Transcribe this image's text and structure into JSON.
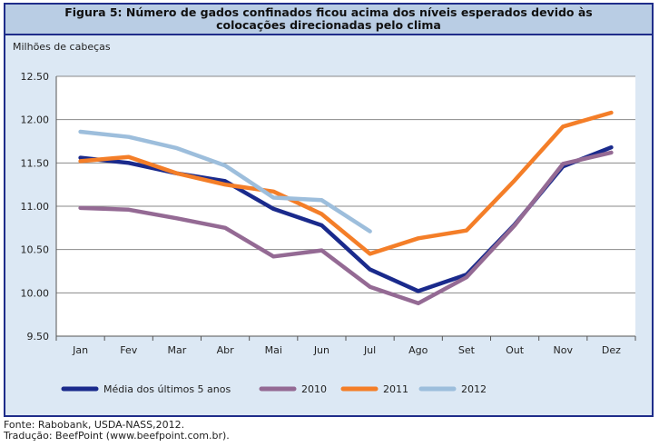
{
  "figure": {
    "title_line1": "Figura 5: Número de gados confinados ficou acima dos níveis esperados devido às",
    "title_line2": "colocações direcionadas pelo clima",
    "unit_label": "Milhões de cabeças"
  },
  "footer": {
    "source": "Fonte: Rabobank, USDA-NASS,2012.",
    "translation": "Tradução: BeefPoint (www.beefpoint.com.br)."
  },
  "chart_data": {
    "type": "line",
    "title": "Figura 5: Número de gados confinados ficou acima dos níveis esperados devido às colocações direcionadas pelo clima",
    "ylabel": "Milhões de cabeças",
    "xlabel": "",
    "categories": [
      "Jan",
      "Fev",
      "Mar",
      "Abr",
      "Mai",
      "Jun",
      "Jul",
      "Ago",
      "Set",
      "Out",
      "Nov",
      "Dez"
    ],
    "ylim": [
      9.5,
      12.5
    ],
    "yticks": [
      "9.50",
      "10.00",
      "10.50",
      "11.00",
      "11.50",
      "12.00",
      "12.50"
    ],
    "grid": true,
    "legend_position": "bottom",
    "series": [
      {
        "name": "Média dos últimos 5 anos",
        "color": "#1a2a8c",
        "values": [
          11.56,
          11.5,
          11.38,
          11.29,
          10.97,
          10.78,
          10.27,
          10.02,
          10.21,
          10.79,
          11.46,
          11.68
        ]
      },
      {
        "name": "2010",
        "color": "#946a94",
        "values": [
          10.98,
          10.96,
          10.86,
          10.75,
          10.42,
          10.49,
          10.07,
          9.88,
          10.18,
          10.78,
          11.49,
          11.62
        ]
      },
      {
        "name": "2011",
        "color": "#f47e28",
        "values": [
          11.52,
          11.57,
          11.38,
          11.25,
          11.17,
          10.91,
          10.45,
          10.63,
          10.72,
          11.3,
          11.92,
          12.08
        ]
      },
      {
        "name": "2012",
        "color": "#9dbedc",
        "values": [
          11.86,
          11.8,
          11.67,
          11.47,
          11.1,
          11.07,
          10.71,
          null,
          null,
          null,
          null,
          null
        ]
      }
    ]
  }
}
